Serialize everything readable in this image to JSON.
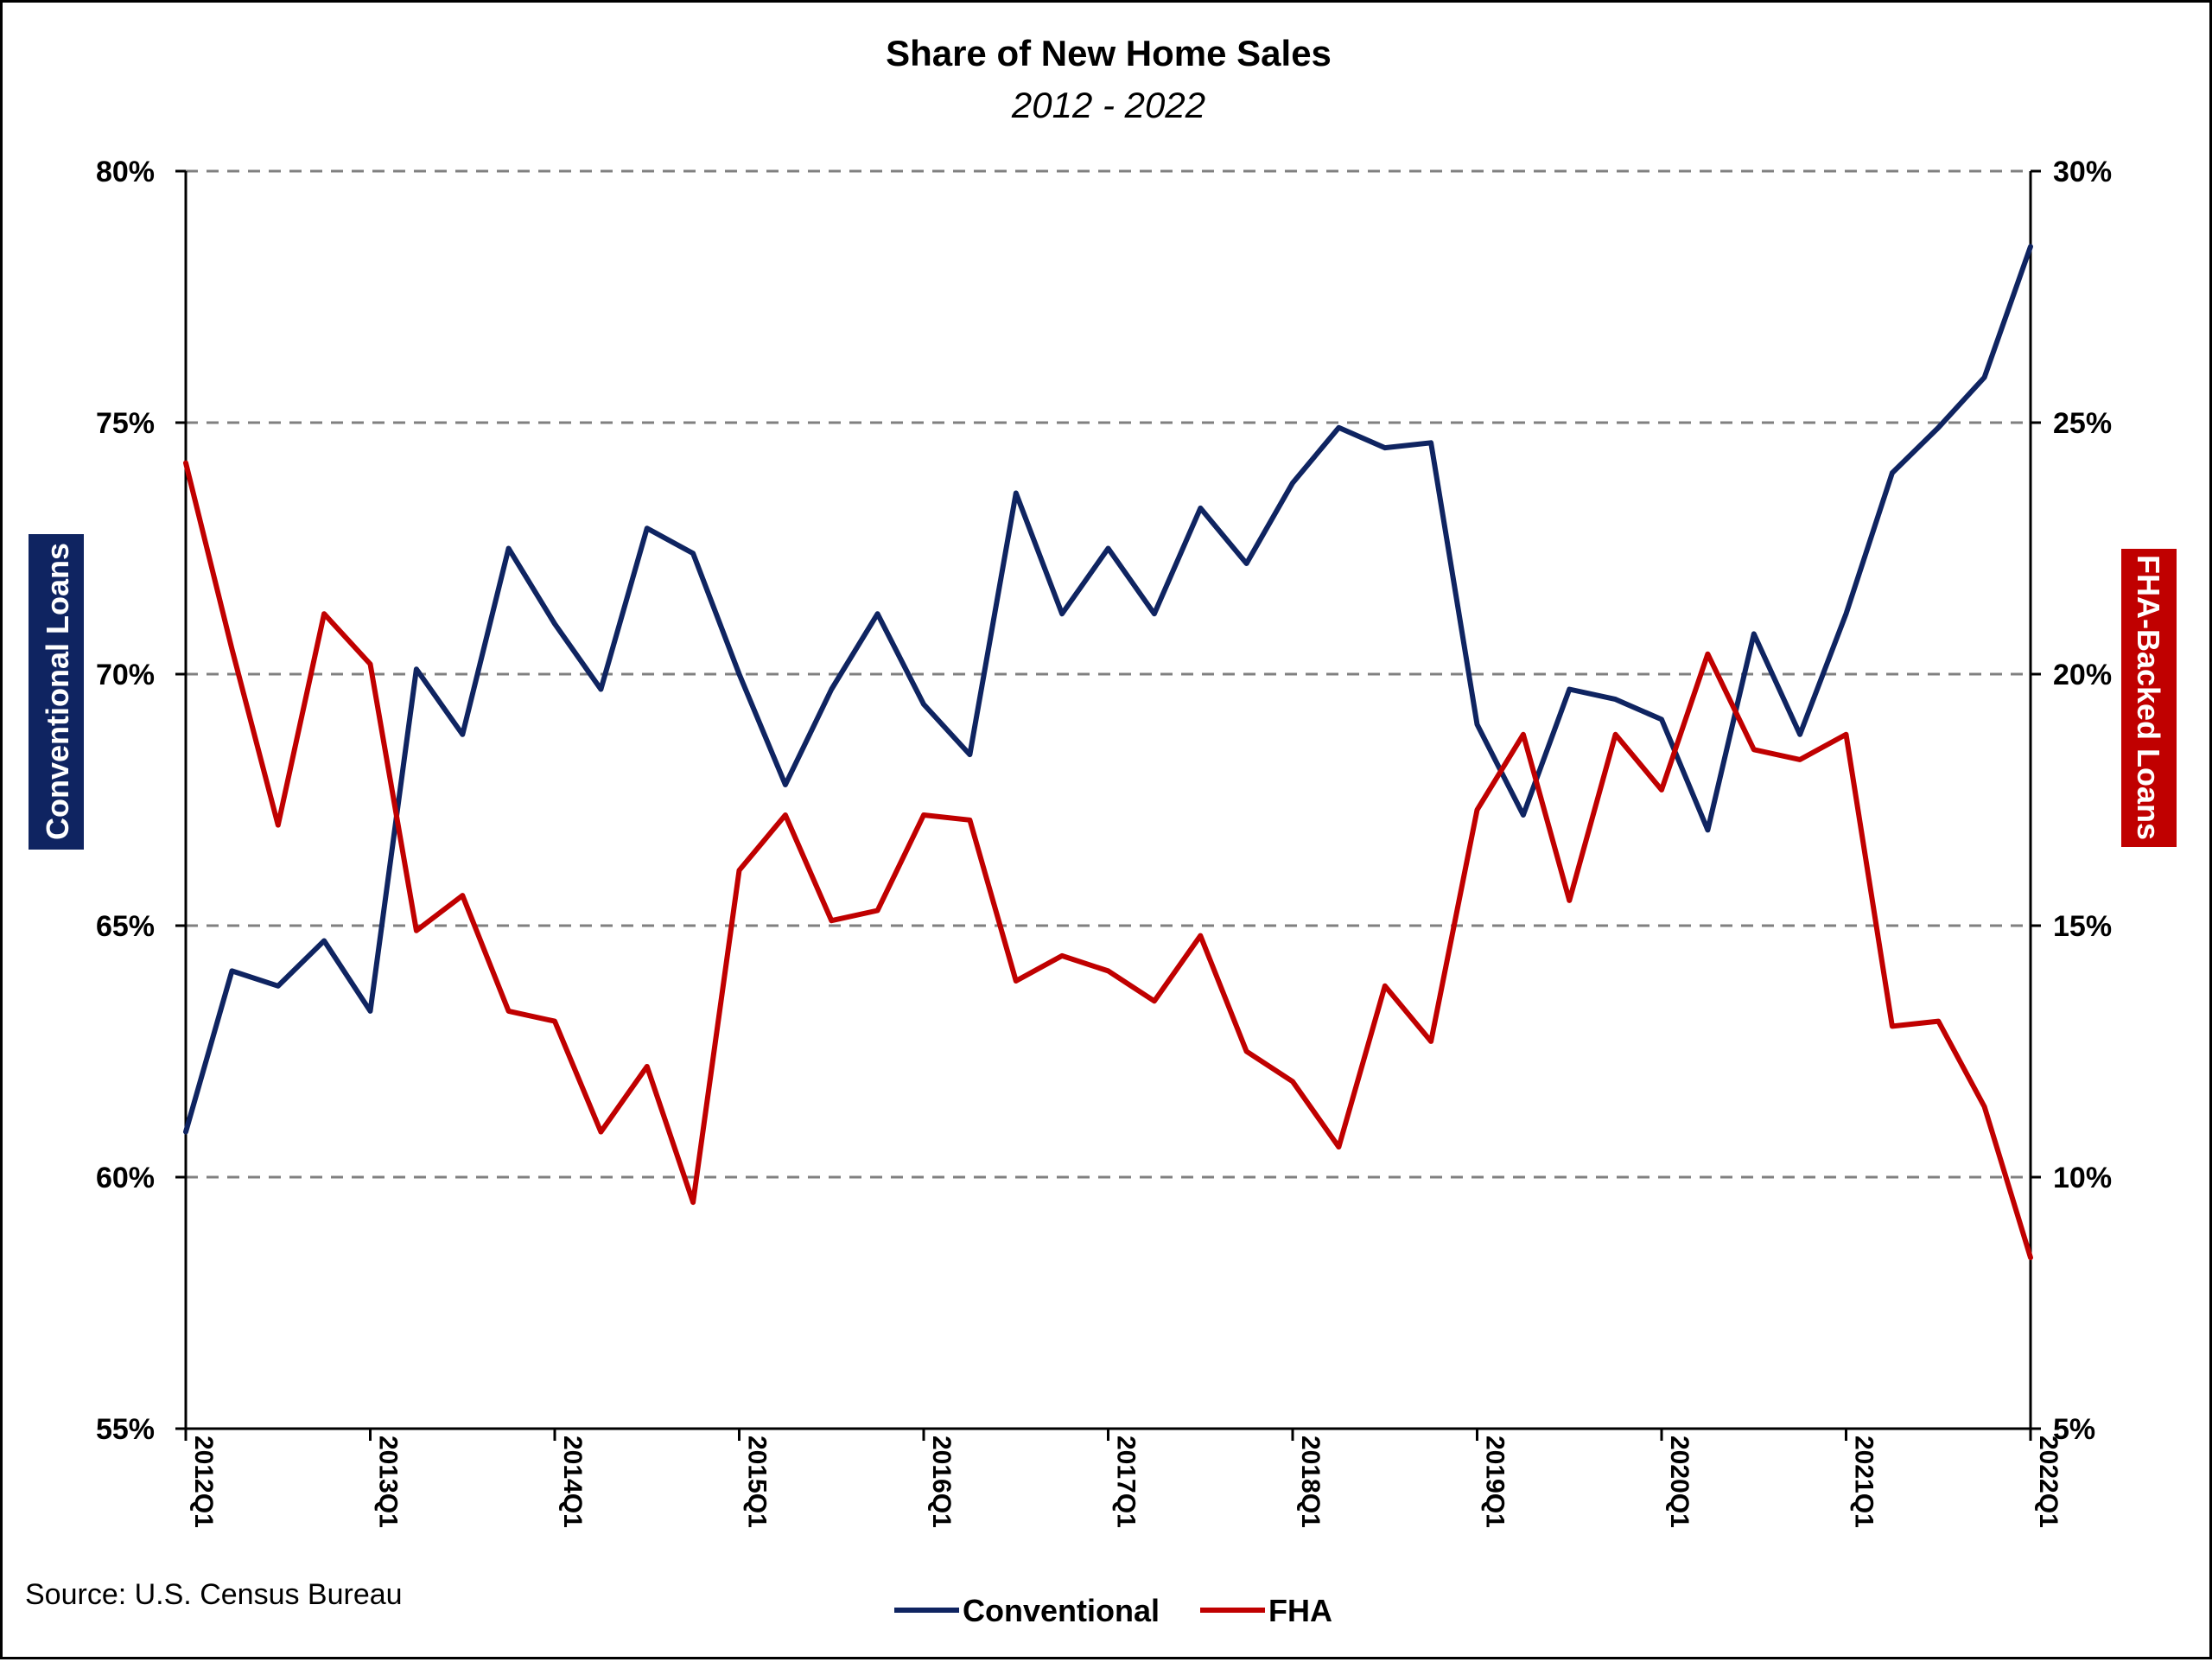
{
  "colors": {
    "conventional": "#0f2461",
    "fha": "#c00000",
    "grid": "#808080",
    "left_label_bg": "#0f2461",
    "right_label_bg": "#c00000"
  },
  "source_text": "Source: U.S. Census Bureau",
  "chart_data": {
    "type": "line",
    "title": "Share of New Home Sales",
    "subtitle": "2012 - 2022",
    "ylabel_left": "Conventional Loans",
    "ylabel_right": "FHA-Backed Loans",
    "ylim_left": [
      55,
      80
    ],
    "ylim_right": [
      5,
      30
    ],
    "yticks_left": [
      "55%",
      "60%",
      "65%",
      "70%",
      "75%",
      "80%"
    ],
    "yticks_right": [
      "5%",
      "10%",
      "15%",
      "20%",
      "25%",
      "30%"
    ],
    "x_tick_labels": [
      "2012Q1",
      "2013Q1",
      "2014Q1",
      "2015Q1",
      "2016Q1",
      "2017Q1",
      "2018Q1",
      "2019Q1",
      "2020Q1",
      "2021Q1",
      "2022Q1"
    ],
    "x": [
      "2012Q1",
      "2012Q2",
      "2012Q3",
      "2012Q4",
      "2013Q1",
      "2013Q2",
      "2013Q3",
      "2013Q4",
      "2014Q1",
      "2014Q2",
      "2014Q3",
      "2014Q4",
      "2015Q1",
      "2015Q2",
      "2015Q3",
      "2015Q4",
      "2016Q1",
      "2016Q2",
      "2016Q3",
      "2016Q4",
      "2017Q1",
      "2017Q2",
      "2017Q3",
      "2017Q4",
      "2018Q1",
      "2018Q2",
      "2018Q3",
      "2018Q4",
      "2019Q1",
      "2019Q2",
      "2019Q3",
      "2019Q4",
      "2020Q1",
      "2020Q2",
      "2020Q3",
      "2020Q4",
      "2021Q1",
      "2021Q2",
      "2021Q3",
      "2021Q4",
      "2022Q1"
    ],
    "grid": true,
    "legend_position": "bottom-center",
    "series": [
      {
        "name": "Conventional",
        "axis": "left",
        "values": [
          60.9,
          64.1,
          63.8,
          64.7,
          63.3,
          70.1,
          68.8,
          72.5,
          71.0,
          69.7,
          72.9,
          72.4,
          70.0,
          67.8,
          69.7,
          71.2,
          69.4,
          68.4,
          73.6,
          71.2,
          72.5,
          71.2,
          73.3,
          72.2,
          73.8,
          74.9,
          74.5,
          74.6,
          69.0,
          67.2,
          69.7,
          69.5,
          69.1,
          66.9,
          70.8,
          68.8,
          71.2,
          74.0,
          74.9,
          75.9,
          78.5
        ]
      },
      {
        "name": "FHA",
        "axis": "right",
        "values": [
          24.2,
          20.5,
          17.0,
          21.2,
          20.2,
          14.9,
          15.6,
          13.3,
          13.1,
          10.9,
          12.2,
          9.5,
          16.1,
          17.2,
          15.1,
          15.3,
          17.2,
          17.1,
          13.9,
          14.4,
          14.1,
          13.5,
          14.8,
          12.5,
          11.9,
          10.6,
          13.8,
          12.7,
          17.3,
          18.8,
          15.5,
          18.8,
          17.7,
          20.4,
          18.5,
          18.3,
          18.8,
          13.0,
          13.1,
          11.4,
          8.4
        ]
      }
    ]
  }
}
